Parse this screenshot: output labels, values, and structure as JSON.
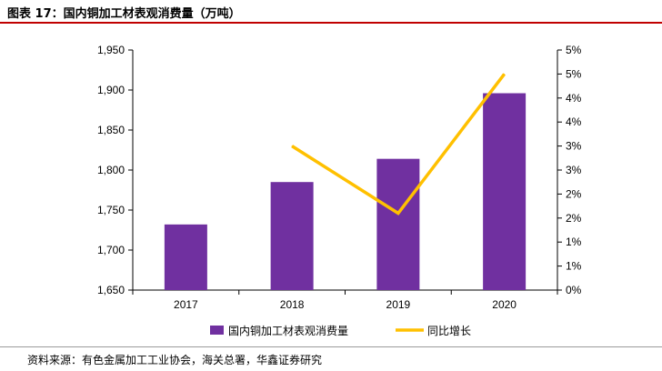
{
  "header": {
    "title": "图表 17：国内铜加工材表观消费量（万吨）"
  },
  "footer": {
    "source": "资料来源：有色金属加工工业协会，海关总署，华鑫证券研究"
  },
  "colors": {
    "bar": "#7030a0",
    "line": "#ffc000",
    "rule": "#c00000"
  },
  "chart_data": {
    "type": "bar+line",
    "categories": [
      "2017",
      "2018",
      "2019",
      "2020"
    ],
    "series": [
      {
        "name": "国内铜加工材表观消费量",
        "type": "bar",
        "axis": "left",
        "values": [
          1732,
          1785,
          1814,
          1896
        ]
      },
      {
        "name": "同比增长",
        "type": "line",
        "axis": "right",
        "values": [
          null,
          3.0,
          1.6,
          4.5
        ]
      }
    ],
    "left_axis": {
      "ylim": [
        1650,
        1950
      ],
      "ticks": [
        1650,
        1700,
        1750,
        1800,
        1850,
        1900,
        1950
      ],
      "tick_labels": [
        "1,650",
        "1,700",
        "1,750",
        "1,800",
        "1,850",
        "1,900",
        "1,950"
      ]
    },
    "right_axis": {
      "ylim": [
        0,
        5
      ],
      "ticks": [
        0,
        0.5,
        1,
        1.5,
        2,
        2.5,
        3,
        3.5,
        4,
        4.5,
        5
      ],
      "tick_labels": [
        "0%",
        "1%",
        "1%",
        "2%",
        "2%",
        "3%",
        "3%",
        "4%",
        "4%",
        "5%",
        "5%"
      ]
    },
    "legend_position": "bottom",
    "grid": false
  }
}
